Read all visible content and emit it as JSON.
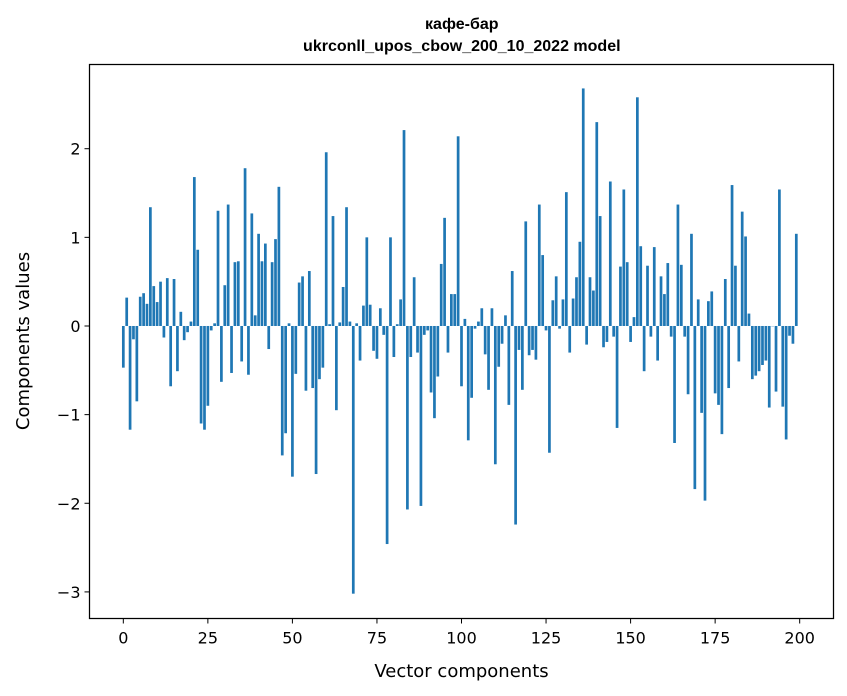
{
  "chart_data": {
    "type": "bar",
    "title": "кафе-бар",
    "subtitle": "ukrconll_upos_cbow_200_10_2022 model",
    "xlabel": "Vector components",
    "ylabel": "Components values",
    "xlim": [
      -10,
      210
    ],
    "ylim": [
      -3.3,
      2.95
    ],
    "xticks": [
      0,
      25,
      50,
      75,
      100,
      125,
      150,
      175,
      200
    ],
    "xtick_labels": [
      "0",
      "25",
      "50",
      "75",
      "100",
      "125",
      "150",
      "175",
      "200"
    ],
    "yticks": [
      -3,
      -2,
      -1,
      0,
      1,
      2
    ],
    "ytick_labels": [
      "−3",
      "−2",
      "−1",
      "0",
      "1",
      "2"
    ],
    "bar_color": "#1f77b4",
    "grid": false,
    "legend": "none",
    "x": [
      0,
      1,
      2,
      3,
      4,
      5,
      6,
      7,
      8,
      9,
      10,
      11,
      12,
      13,
      14,
      15,
      16,
      17,
      18,
      19,
      20,
      21,
      22,
      23,
      24,
      25,
      26,
      27,
      28,
      29,
      30,
      31,
      32,
      33,
      34,
      35,
      36,
      37,
      38,
      39,
      40,
      41,
      42,
      43,
      44,
      45,
      46,
      47,
      48,
      49,
      50,
      51,
      52,
      53,
      54,
      55,
      56,
      57,
      58,
      59,
      60,
      61,
      62,
      63,
      64,
      65,
      66,
      67,
      68,
      69,
      70,
      71,
      72,
      73,
      74,
      75,
      76,
      77,
      78,
      79,
      80,
      81,
      82,
      83,
      84,
      85,
      86,
      87,
      88,
      89,
      90,
      91,
      92,
      93,
      94,
      95,
      96,
      97,
      98,
      99,
      100,
      101,
      102,
      103,
      104,
      105,
      106,
      107,
      108,
      109,
      110,
      111,
      112,
      113,
      114,
      115,
      116,
      117,
      118,
      119,
      120,
      121,
      122,
      123,
      124,
      125,
      126,
      127,
      128,
      129,
      130,
      131,
      132,
      133,
      134,
      135,
      136,
      137,
      138,
      139,
      140,
      141,
      142,
      143,
      144,
      145,
      146,
      147,
      148,
      149,
      150,
      151,
      152,
      153,
      154,
      155,
      156,
      157,
      158,
      159,
      160,
      161,
      162,
      163,
      164,
      165,
      166,
      167,
      168,
      169,
      170,
      171,
      172,
      173,
      174,
      175,
      176,
      177,
      178,
      179,
      180,
      181,
      182,
      183,
      184,
      185,
      186,
      187,
      188,
      189,
      190,
      191,
      192,
      193,
      194,
      195,
      196,
      197,
      198,
      199
    ],
    "values": [
      -0.47,
      0.32,
      -1.17,
      -0.15,
      -0.85,
      0.33,
      0.37,
      0.25,
      1.34,
      0.45,
      0.27,
      0.5,
      -0.13,
      0.54,
      -0.68,
      0.53,
      -0.51,
      0.16,
      -0.16,
      -0.07,
      0.05,
      1.68,
      0.86,
      -1.1,
      -1.17,
      -0.9,
      -0.05,
      0.03,
      1.3,
      -0.63,
      0.46,
      1.37,
      -0.53,
      0.72,
      0.73,
      -0.4,
      1.78,
      -0.55,
      1.27,
      0.12,
      1.04,
      0.73,
      0.93,
      -0.26,
      0.72,
      0.98,
      1.57,
      -1.46,
      -1.21,
      0.03,
      -1.7,
      -0.54,
      0.49,
      0.56,
      -0.73,
      0.62,
      -0.7,
      -1.67,
      -0.6,
      -0.47,
      1.96,
      0.02,
      1.24,
      -0.95,
      0.04,
      0.44,
      1.34,
      0.05,
      -3.02,
      0.03,
      -0.39,
      0.23,
      1.0,
      0.24,
      -0.28,
      -0.37,
      0.2,
      -0.1,
      -2.46,
      1.0,
      -0.35,
      0.02,
      0.3,
      2.21,
      -2.07,
      -0.35,
      0.55,
      -0.3,
      -2.03,
      -0.1,
      -0.05,
      -0.75,
      -1.04,
      -0.57,
      0.7,
      1.22,
      -0.3,
      0.36,
      0.36,
      2.14,
      -0.68,
      0.08,
      -1.29,
      -0.81,
      -0.03,
      0.05,
      0.2,
      -0.32,
      -0.72,
      0.2,
      -1.56,
      -0.46,
      -0.2,
      0.12,
      -0.89,
      0.62,
      -2.24,
      -0.27,
      -0.72,
      1.18,
      -0.33,
      -0.27,
      -0.38,
      1.37,
      0.8,
      -0.05,
      -1.43,
      0.29,
      0.56,
      -0.03,
      0.3,
      1.51,
      -0.3,
      0.31,
      0.55,
      0.95,
      2.68,
      -0.21,
      0.55,
      0.4,
      2.3,
      1.24,
      -0.24,
      -0.18,
      1.63,
      -0.12,
      -1.15,
      0.67,
      1.54,
      0.72,
      -0.18,
      0.1,
      2.58,
      0.9,
      -0.51,
      0.68,
      -0.12,
      0.89,
      -0.39,
      0.56,
      0.36,
      0.71,
      -0.12,
      -1.32,
      1.37,
      0.69,
      -0.12,
      -0.77,
      1.04,
      -1.84,
      0.3,
      -0.98,
      -1.97,
      0.28,
      0.39,
      -0.76,
      -0.89,
      -1.22,
      0.53,
      -0.7,
      1.59,
      0.68,
      -0.4,
      1.29,
      1.01,
      0.14,
      -0.6,
      -0.56,
      -0.51,
      -0.44,
      -0.39,
      -0.92,
      0.0,
      -0.74,
      1.54,
      -0.91,
      -1.28,
      -0.11,
      -0.2,
      1.04
    ]
  }
}
